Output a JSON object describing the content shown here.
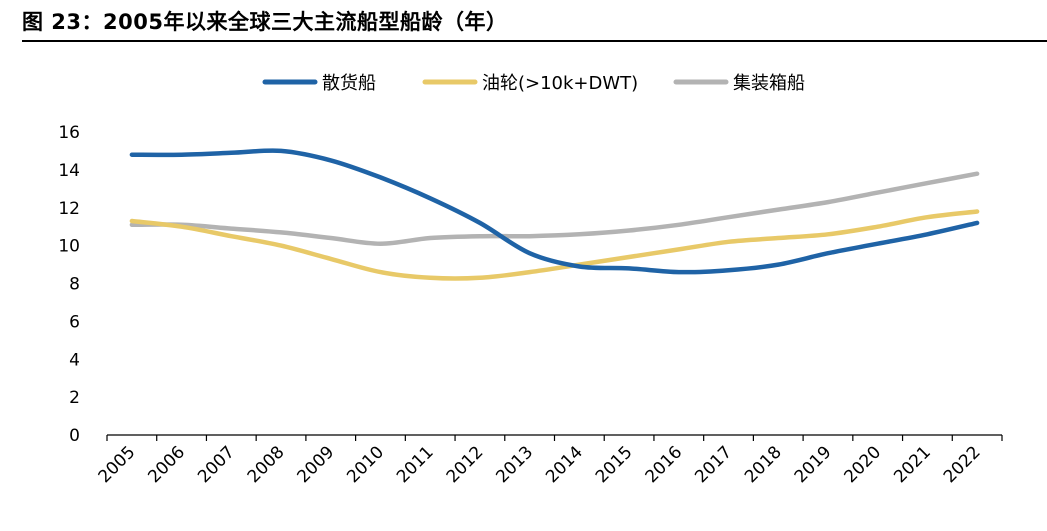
{
  "title": "图 23：2005年以来全球三大主流船型船龄（年）",
  "chart_data": {
    "type": "line",
    "x": [
      "2005",
      "2006",
      "2007",
      "2008",
      "2009",
      "2010",
      "2011",
      "2012",
      "2013",
      "2014",
      "2015",
      "2016",
      "2017",
      "2018",
      "2019",
      "2020",
      "2021",
      "2022"
    ],
    "ylim": [
      0,
      16
    ],
    "yticks": [
      "0",
      "2",
      "4",
      "6",
      "8",
      "10",
      "12",
      "14",
      "16"
    ],
    "grid": false,
    "legend_position": "top",
    "series": [
      {
        "name": "散货船",
        "color": "#1f63a6",
        "values": [
          14.8,
          14.8,
          14.9,
          15.0,
          14.5,
          13.6,
          12.5,
          11.2,
          9.6,
          8.9,
          8.8,
          8.6,
          8.7,
          9.0,
          9.6,
          10.1,
          10.6,
          11.2
        ]
      },
      {
        "name": "油轮(>10k+DWT)",
        "color": "#e8c968",
        "values": [
          11.3,
          11.0,
          10.5,
          10.0,
          9.3,
          8.6,
          8.3,
          8.3,
          8.6,
          9.0,
          9.4,
          9.8,
          10.2,
          10.4,
          10.6,
          11.0,
          11.5,
          11.8
        ]
      },
      {
        "name": "集装箱船",
        "color": "#b3b3b3",
        "values": [
          11.1,
          11.1,
          10.9,
          10.7,
          10.4,
          10.1,
          10.4,
          10.5,
          10.5,
          10.6,
          10.8,
          11.1,
          11.5,
          11.9,
          12.3,
          12.8,
          13.3,
          13.8
        ]
      }
    ]
  }
}
